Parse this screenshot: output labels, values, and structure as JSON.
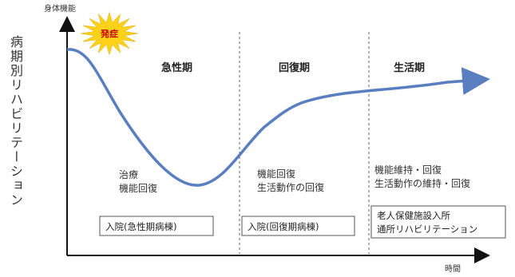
{
  "side_title": "病期別リハビリテーション",
  "axes": {
    "y_label": "身体機能",
    "x_label": "時間"
  },
  "onset_label": "発症",
  "phases": [
    {
      "name": "急性期",
      "lines": [
        "治療",
        "機能回復"
      ],
      "box": [
        "入院(急性期病棟)"
      ]
    },
    {
      "name": "回復期",
      "lines": [
        "機能回復",
        "生活動作の回復"
      ],
      "box": [
        "入院(回復期病棟)"
      ]
    },
    {
      "name": "生活期",
      "lines": [
        "機能維持・回復",
        "生活動作の維持・回復"
      ],
      "box": [
        "老人保健施設入所",
        "通所リハビリテーション"
      ]
    }
  ],
  "colors": {
    "curve": "#5a7fc0",
    "burst": "#ffd21a",
    "burst_text": "#cc0000"
  }
}
